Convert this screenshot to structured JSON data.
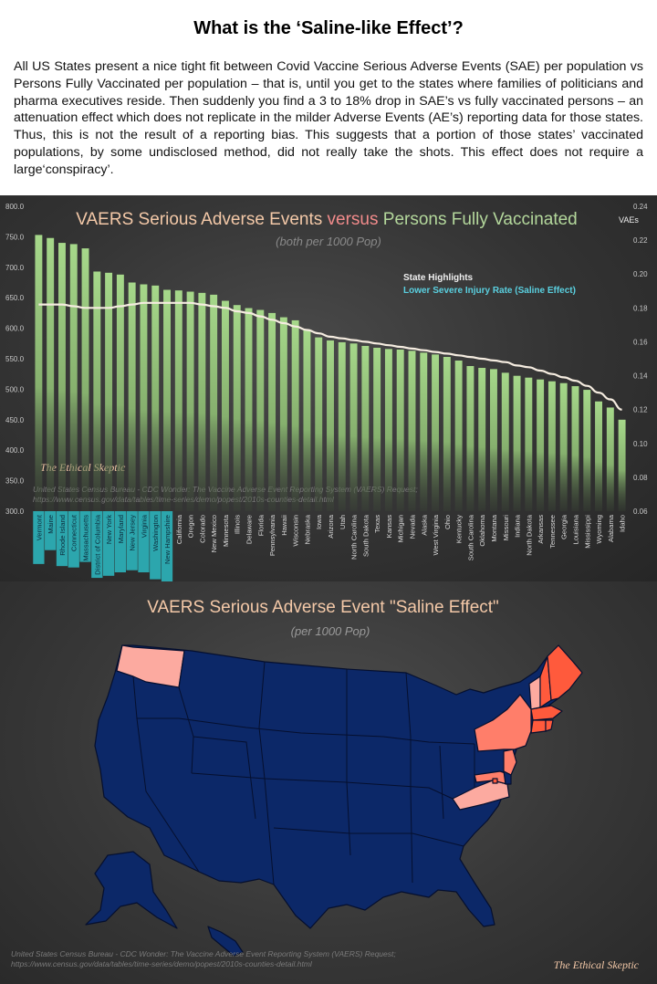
{
  "header": {
    "title": "What is the ‘Saline-like Effect’?",
    "intro": "All US States present a nice tight fit between Covid Vaccine Serious Adverse Events (SAE) per population vs Persons Fully Vaccinated per population – that is, until you get to the states where families of politicians and pharma executives reside. Then suddenly you find a 3 to 18% drop in SAE’s vs fully vaccinated persons – an attenuation effect which does not replicate in the milder Adverse Events (AE’s) reporting data for those states. Thus, this is not the result of a reporting bias. This suggests that a portion of those states’ vaccinated populations, by some undisclosed method, did not really take the shots. This effect does not require a large‘conspiracy’."
  },
  "chart_data": [
    {
      "type": "bar",
      "title_part1": "VAERS Serious Adverse Events ",
      "title_part2": "versus",
      "title_part3": " Persons Fully Vaccinated",
      "subtitle": "(both per 1000 Pop)",
      "right_axis_label": "VAEs",
      "ylim": [
        300,
        800
      ],
      "y_ticks": [
        "300.0",
        "350.0",
        "400.0",
        "450.0",
        "500.0",
        "550.0",
        "600.0",
        "650.0",
        "700.0",
        "750.0",
        "800.0"
      ],
      "y2lim": [
        0.06,
        0.24
      ],
      "y2_ticks": [
        "0.06",
        "0.08",
        "0.10",
        "0.12",
        "0.14",
        "0.16",
        "0.18",
        "0.20",
        "0.22",
        "0.24"
      ],
      "legend_title": "State Highlights",
      "legend_item": "Lower Severe Injury Rate (Saline Effect)",
      "source": "United States Census Bureau - CDC Wonder: The Vaccine Adverse Event Reporting System (VAERS) Request; https://www.census.gov/data/tables/time-series/demo/popest/2010s-counties-detail.html",
      "watermark": "The Ethical Skeptic",
      "categories": [
        "Vermont",
        "Maine",
        "Rhode Island",
        "Connecticut",
        "Massachusetts",
        "District of Columbia",
        "New York",
        "Maryland",
        "New Jersey",
        "Virginia",
        "Washington",
        "New Hampshire",
        "California",
        "Oregon",
        "Colorado",
        "New Mexico",
        "Minnesota",
        "Illinois",
        "Delaware",
        "Florida",
        "Pennsylvania",
        "Hawaii",
        "Wisconsin",
        "Nebraska",
        "Iowa",
        "Arizona",
        "Utah",
        "North Carolina",
        "South Dakota",
        "Texas",
        "Kansas",
        "Michigan",
        "Nevada",
        "Alaska",
        "West Virginia",
        "Ohio",
        "Kentucky",
        "South Carolina",
        "Oklahoma",
        "Montana",
        "Missouri",
        "Indiana",
        "North Dakota",
        "Arkansas",
        "Tennessee",
        "Georgia",
        "Louisiana",
        "Mississippi",
        "Wyoming",
        "Alabama",
        "Idaho"
      ],
      "highlighted": [
        true,
        true,
        true,
        true,
        true,
        true,
        true,
        true,
        true,
        true,
        true,
        true,
        false,
        false,
        false,
        false,
        false,
        false,
        false,
        false,
        false,
        false,
        false,
        false,
        false,
        false,
        false,
        false,
        false,
        false,
        false,
        false,
        false,
        false,
        false,
        false,
        false,
        false,
        false,
        false,
        false,
        false,
        false,
        false,
        false,
        false,
        false,
        false,
        false,
        false,
        false
      ],
      "highlight_depth": [
        0.63,
        0.43,
        0.66,
        0.68,
        0.6,
        0.83,
        0.8,
        0.75,
        0.72,
        0.75,
        0.85,
        1.0,
        0,
        0,
        0,
        0,
        0,
        0,
        0,
        0,
        0,
        0,
        0,
        0,
        0,
        0,
        0,
        0,
        0,
        0,
        0,
        0,
        0,
        0,
        0,
        0,
        0,
        0,
        0,
        0,
        0,
        0,
        0,
        0,
        0,
        0,
        0,
        0,
        0,
        0,
        0
      ],
      "series": [
        {
          "values": [
            753,
            748,
            740,
            738,
            731,
            693,
            691,
            688,
            675,
            672,
            670,
            663,
            662,
            660,
            658,
            655,
            645,
            638,
            633,
            630,
            625,
            618,
            613,
            598,
            585,
            580,
            577,
            575,
            571,
            568,
            566,
            565,
            563,
            560,
            557,
            553,
            547,
            538,
            535,
            533,
            527,
            522,
            519,
            516,
            513,
            510,
            505,
            499,
            480,
            470,
            450
          ]
        },
        {
          "values": [
            0.182,
            0.182,
            0.182,
            0.181,
            0.18,
            0.18,
            0.18,
            0.181,
            0.182,
            0.183,
            0.183,
            0.183,
            0.183,
            0.183,
            0.182,
            0.181,
            0.18,
            0.178,
            0.177,
            0.175,
            0.173,
            0.171,
            0.169,
            0.167,
            0.165,
            0.163,
            0.162,
            0.161,
            0.16,
            0.159,
            0.158,
            0.157,
            0.156,
            0.155,
            0.154,
            0.153,
            0.152,
            0.151,
            0.15,
            0.149,
            0.148,
            0.146,
            0.145,
            0.143,
            0.141,
            0.139,
            0.137,
            0.134,
            0.13,
            0.126,
            0.12
          ]
        }
      ]
    }
  ],
  "map": {
    "title": "VAERS Serious Adverse Event \"Saline Effect\"",
    "subtitle": "(per 1000 Pop)",
    "source": "United States Census Bureau - CDC Wonder: The Vaccine Adverse Event Reporting System (VAERS) Request; https://www.census.gov/data/tables/time-series/demo/popest/2010s-counties-detail.html",
    "watermark": "The Ethical Skeptic",
    "colors": {
      "base": "#0c2868",
      "strong": "#ff5a3c",
      "medium": "#ff7e6a",
      "light": "#fcaaa0",
      "border": "#050f2e"
    }
  }
}
